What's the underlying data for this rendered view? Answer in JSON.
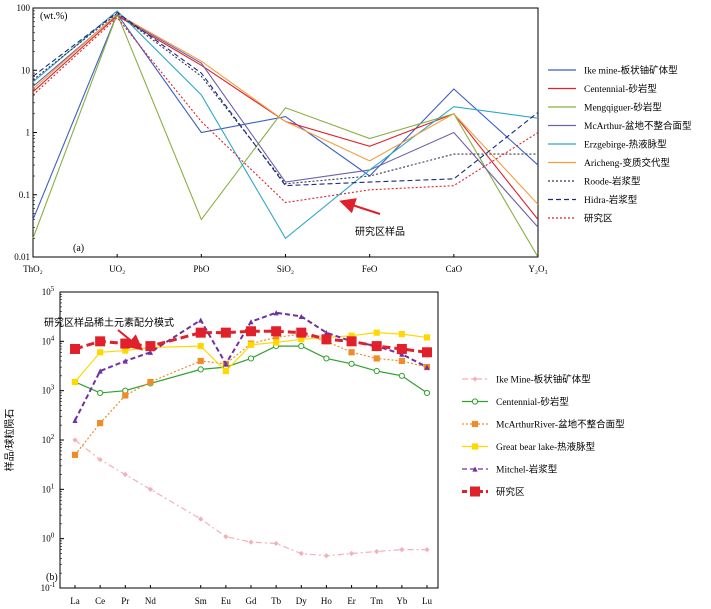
{
  "chart_data": [
    {
      "type": "line",
      "panel_label": "(a)",
      "ylabel": "(wt.%)",
      "yscale": "log",
      "ylim": [
        0.01,
        100
      ],
      "y_ticks": [
        "0.01",
        "0.1",
        "1",
        "10",
        "100"
      ],
      "categories": [
        "ThO₂",
        "UO₂",
        "PbO",
        "SiO₂",
        "FeO",
        "CaO",
        "Y₂O₃"
      ],
      "annotation": "研究区样品",
      "series": [
        {
          "name": "Ike mine-板状铀矿体型",
          "color": "#3b5fc4",
          "dash": "solid",
          "values": [
            0.04,
            80,
            1.0,
            1.8,
            0.2,
            5.0,
            0.3
          ]
        },
        {
          "name": "Centennial-砂岩型",
          "color": "#e0202a",
          "dash": "solid",
          "values": [
            4.5,
            75,
            12,
            1.5,
            0.6,
            2.0,
            0.04
          ]
        },
        {
          "name": "Mengqiguer-砂岩型",
          "color": "#88b040",
          "dash": "solid",
          "values": [
            0.02,
            80,
            0.04,
            2.5,
            0.8,
            2.0,
            0.01
          ]
        },
        {
          "name": "McArthur-盆地不整合面型",
          "color": "#7060a8",
          "dash": "solid",
          "values": [
            5.5,
            78,
            13,
            0.16,
            0.25,
            1.0,
            0.03
          ]
        },
        {
          "name": "Erzgebirge-热液脉型",
          "color": "#30a8c8",
          "dash": "solid",
          "values": [
            6.5,
            90,
            4.0,
            0.02,
            0.25,
            2.6,
            1.7
          ]
        },
        {
          "name": "Aricheng-变质交代型",
          "color": "#f0a040",
          "dash": "solid",
          "values": [
            5.0,
            80,
            14,
            1.5,
            0.35,
            2.0,
            0.07
          ]
        },
        {
          "name": "Roode-岩浆型",
          "color": "#303858",
          "dash": "dot",
          "values": [
            7.0,
            82,
            8.0,
            0.15,
            0.2,
            0.45,
            0.45
          ]
        },
        {
          "name": "Hidra-岩浆型",
          "color": "#1a2a80",
          "dash": "dash",
          "values": [
            8.0,
            85,
            9.0,
            0.14,
            0.16,
            0.18,
            2.1
          ]
        },
        {
          "name": "研究区",
          "color": "#e0202a",
          "dash": "dot",
          "values": [
            4.0,
            70,
            1.5,
            0.075,
            0.12,
            0.14,
            1.0
          ]
        }
      ]
    },
    {
      "type": "line",
      "panel_label": "(b)",
      "ylabel": "样品/球粒陨石",
      "yscale": "log",
      "ylim": [
        0.1,
        100000
      ],
      "categories": [
        "La",
        "Ce",
        "Pr",
        "Nd",
        "Sm",
        "Eu",
        "Gd",
        "Tb",
        "Dy",
        "Ho",
        "Er",
        "Tm",
        "Yb",
        "Lu"
      ],
      "x_positions": [
        1,
        2,
        3,
        4,
        6,
        7,
        8,
        9,
        10,
        11,
        12,
        13,
        14,
        15
      ],
      "annotation": "研究区样品稀土元素配分模式",
      "series": [
        {
          "name": "Ike Mine-板状铀矿体型",
          "color": "#f4b0b8",
          "dash": "dashdot",
          "marker": "diamond",
          "values": [
            100,
            40,
            20,
            10,
            2.5,
            1.1,
            0.85,
            0.8,
            0.5,
            0.45,
            0.5,
            0.55,
            0.6,
            0.6
          ]
        },
        {
          "name": "Centennial-砂岩型",
          "color": "#30a030",
          "dash": "solid",
          "marker": "circle",
          "values": [
            1500,
            900,
            1000,
            1400,
            2700,
            3000,
            4500,
            8000,
            8000,
            4500,
            3500,
            2500,
            2000,
            900
          ]
        },
        {
          "name": "McArthurRiver-盆地不整合面型",
          "color": "#f08c28",
          "dash": "dot",
          "marker": "square",
          "values": [
            50,
            220,
            800,
            1500,
            4000,
            3500,
            9000,
            12000,
            14000,
            10000,
            6000,
            4500,
            4000,
            3000
          ]
        },
        {
          "name": "Great bear lake-热液脉型",
          "color": "#ffd800",
          "dash": "solid",
          "marker": "square",
          "values": [
            1500,
            6000,
            6500,
            7500,
            8000,
            2500,
            8500,
            9500,
            11000,
            12000,
            13000,
            15000,
            14000,
            12000
          ]
        },
        {
          "name": "Mitchel-岩浆型",
          "color": "#7030a0",
          "dash": "dash",
          "marker": "triangle",
          "values": [
            250,
            2500,
            4000,
            6000,
            27000,
            3500,
            25000,
            38000,
            32000,
            15000,
            10000,
            8000,
            5500,
            3000
          ]
        },
        {
          "name": "研究区",
          "color": "#e0202a",
          "dash": "dash",
          "marker": "square",
          "values": [
            7000,
            10000,
            9000,
            8000,
            15000,
            15000,
            16000,
            16000,
            15000,
            11000,
            10000,
            8000,
            7000,
            6000
          ]
        }
      ]
    }
  ]
}
